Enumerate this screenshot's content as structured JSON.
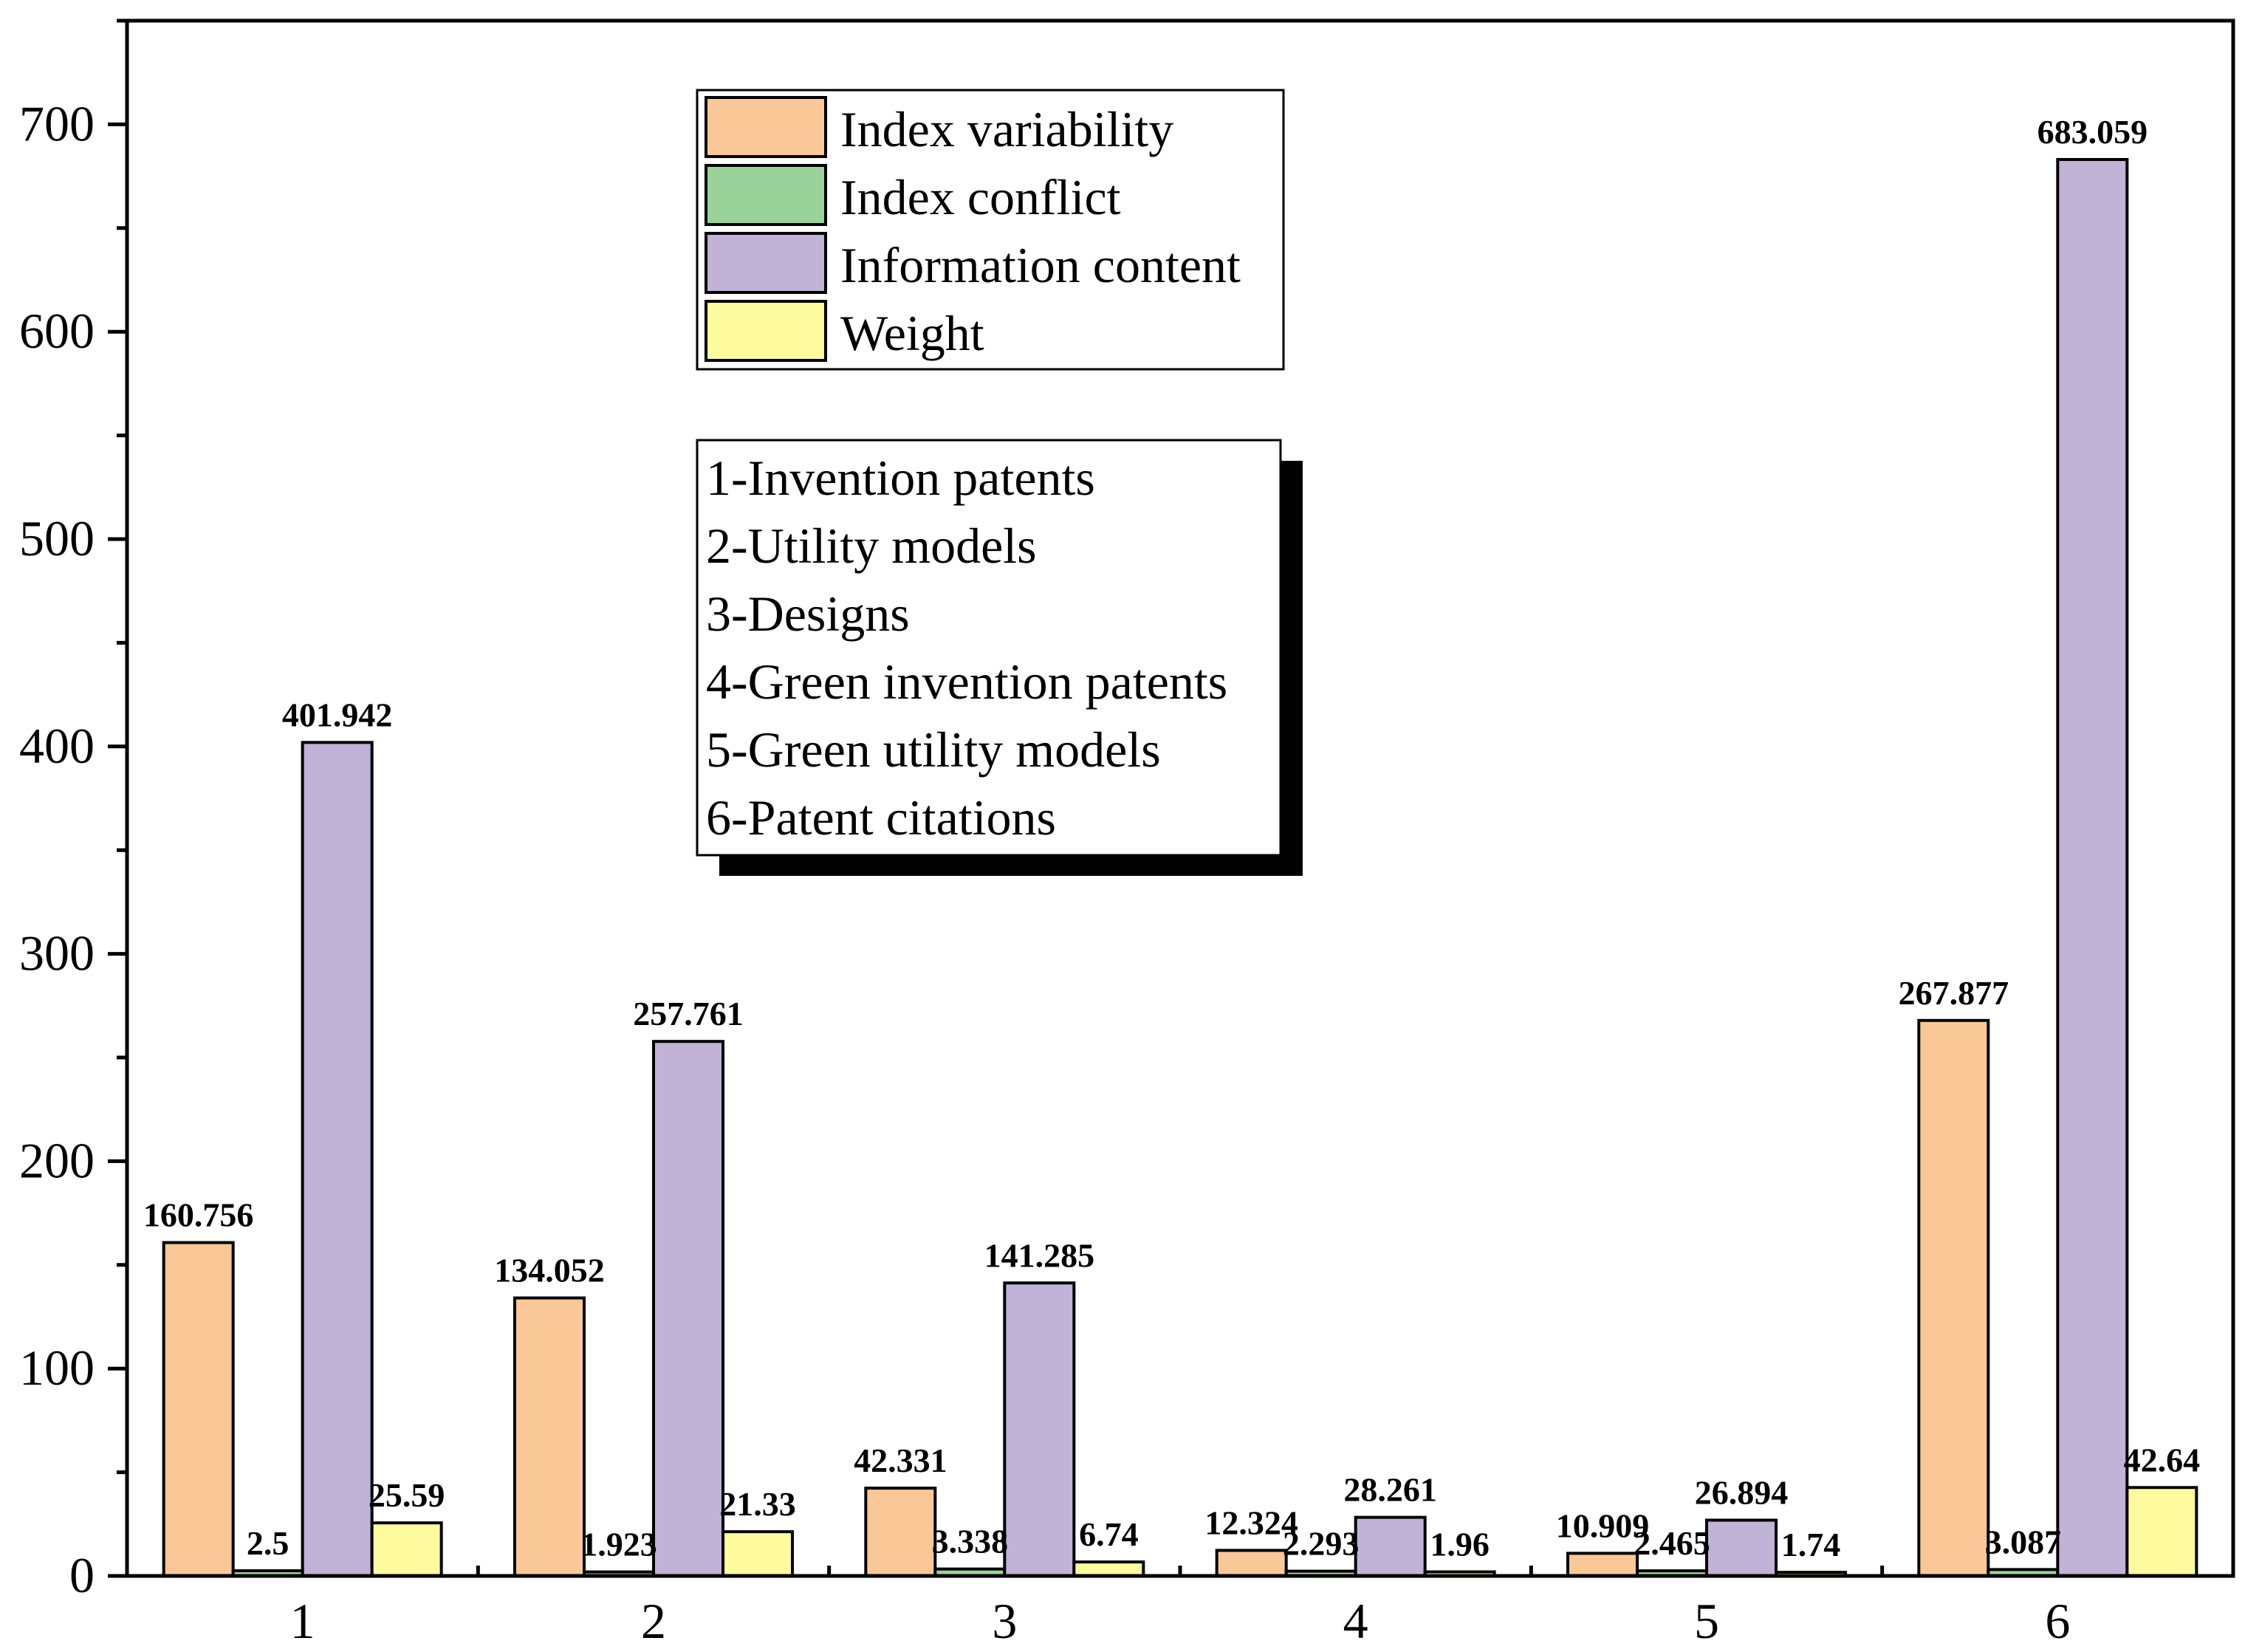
{
  "chart_data": {
    "type": "bar",
    "title": "",
    "xlabel": "",
    "ylabel": "",
    "ylim": [
      0,
      750
    ],
    "yticks": [
      0,
      100,
      200,
      300,
      400,
      500,
      600,
      700
    ],
    "grid": false,
    "categories": [
      "1",
      "2",
      "3",
      "4",
      "5",
      "6"
    ],
    "series": [
      {
        "name": "Index variability",
        "color": "#FAC896",
        "values": [
          160.756,
          134.052,
          42.331,
          12.324,
          10.909,
          267.877
        ],
        "labels": [
          "160.756",
          "134.052",
          "42.331",
          "12.324",
          "10.909",
          "267.877"
        ]
      },
      {
        "name": "Index conflict",
        "color": "#9AD39A",
        "values": [
          2.5,
          1.923,
          3.338,
          2.293,
          2.465,
          3.087
        ],
        "labels": [
          "2.5",
          "1.923",
          "3.338",
          "2.293",
          "2.465",
          "3.087"
        ]
      },
      {
        "name": "Information content",
        "color": "#C1B2D7",
        "values": [
          401.942,
          257.761,
          141.285,
          28.261,
          26.894,
          683.059
        ],
        "labels": [
          "401.942",
          "257.761",
          "141.285",
          "28.261",
          "26.894",
          "683.059"
        ]
      },
      {
        "name": "Weight",
        "color": "#FDFB9E",
        "values": [
          25.59,
          21.33,
          6.74,
          1.96,
          1.74,
          42.64
        ],
        "labels": [
          "25.59",
          "21.33",
          "6.74",
          "1.96",
          "1.74",
          "42.64"
        ]
      }
    ],
    "legend_position": "top-center",
    "annotation": [
      "1-Invention patents",
      "2-Utility models",
      "3-Designs",
      "4-Green invention patents",
      "5-Green utility models",
      "6-Patent citations"
    ]
  }
}
